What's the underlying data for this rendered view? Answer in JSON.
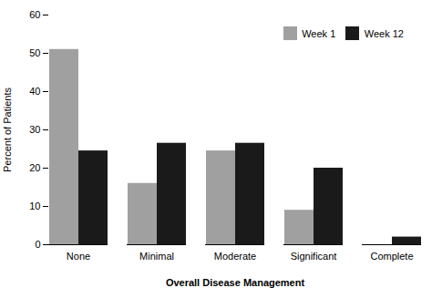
{
  "chart_data": {
    "type": "bar",
    "categories": [
      "None",
      "Minimal",
      "Moderate",
      "Significant",
      "Complete"
    ],
    "series": [
      {
        "name": "Week 1",
        "color": "#a0a0a0",
        "values": [
          51,
          16,
          24.5,
          9,
          0
        ]
      },
      {
        "name": "Week 12",
        "color": "#1a1a1a",
        "values": [
          24.5,
          26.5,
          26.5,
          20,
          2
        ]
      }
    ],
    "xlabel": "Overall Disease Management",
    "ylabel": "Percent of Patients",
    "ylim": [
      0,
      60
    ],
    "yticks": [
      0,
      10,
      20,
      30,
      40,
      50,
      60
    ],
    "legend": "upper right",
    "grid": false
  }
}
